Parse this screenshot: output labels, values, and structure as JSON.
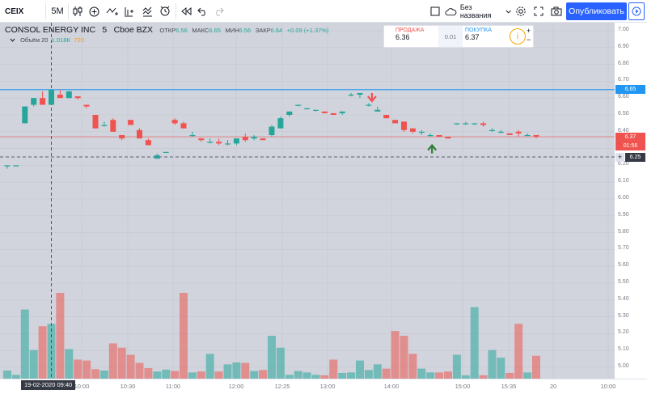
{
  "toolbar": {
    "symbol": "CEIX",
    "interval": "5M",
    "layout_name": "Без названия",
    "publish_label": "Опубликовать"
  },
  "legend": {
    "title": "CONSOL ENERGY INC",
    "interval": "5",
    "exchange": "Cboe BZX",
    "open_label": "ОТКР",
    "open": "6.56",
    "high_label": "МАКС",
    "high": "6.65",
    "low_label": "МИН",
    "low": "6.56",
    "close_label": "ЗАКР",
    "close": "6.64",
    "change": "+0.09 (+1.37%)",
    "volume_label": "Объём 20",
    "volume_value": "1.018K",
    "volume_value2": "720"
  },
  "trade": {
    "sell_label": "ПРОДАЖА",
    "sell_price": "6.36",
    "spread": "0.01",
    "buy_label": "ПОКУПКА",
    "buy_price": "6.37",
    "qty_icon": "i",
    "plus": "+",
    "minus": "−"
  },
  "price_axis": {
    "ticks": [
      "7.00",
      "6.90",
      "6.80",
      "6.70",
      "6.60",
      "6.50",
      "6.40",
      "6.30",
      "6.20",
      "6.10",
      "6.00",
      "5.90",
      "5.80",
      "5.70",
      "5.60",
      "5.50",
      "5.40",
      "5.30",
      "5.20",
      "5.10",
      "5.00"
    ],
    "badge_level": "6.65",
    "badge_last": "6.37",
    "badge_countdown": "01:56",
    "badge_cross": "6.25"
  },
  "time_axis": {
    "labels": [
      "10:00",
      "10:30",
      "11:00",
      "12:00",
      "12:25",
      "13:00",
      "14:00",
      "15:00",
      "15:35",
      "20",
      "10:00"
    ],
    "crosshair_label": "19-02-2020  09:40"
  },
  "colors": {
    "up": "#26a69a",
    "down": "#ef5350",
    "level_line": "#2196f3",
    "last_price_line": "#ef5350",
    "brand": "#2962ff"
  },
  "chart_data": {
    "type": "candlestick",
    "ylim": [
      4.95,
      7.02
    ],
    "level_line": 6.65,
    "last_price": 6.37,
    "crosshair_price": 6.25,
    "candles": [
      {
        "o": 6.2,
        "h": 6.2,
        "l": 6.18,
        "c": 6.2,
        "v": 170
      },
      {
        "o": 6.2,
        "h": 6.2,
        "l": 6.2,
        "c": 6.2,
        "v": 80
      },
      {
        "o": 6.45,
        "h": 6.55,
        "l": 6.45,
        "c": 6.55,
        "v": 1450
      },
      {
        "o": 6.56,
        "h": 6.6,
        "l": 6.55,
        "c": 6.6,
        "v": 600
      },
      {
        "o": 6.6,
        "h": 6.64,
        "l": 6.56,
        "c": 6.56,
        "v": 1100
      },
      {
        "o": 6.56,
        "h": 6.65,
        "l": 6.56,
        "c": 6.65,
        "v": 1150
      },
      {
        "o": 6.62,
        "h": 6.65,
        "l": 6.6,
        "c": 6.6,
        "v": 1800
      },
      {
        "o": 6.6,
        "h": 6.64,
        "l": 6.6,
        "c": 6.64,
        "v": 620
      },
      {
        "o": 6.61,
        "h": 6.61,
        "l": 6.59,
        "c": 6.6,
        "v": 400
      },
      {
        "o": 6.56,
        "h": 6.56,
        "l": 6.54,
        "c": 6.55,
        "v": 380
      },
      {
        "o": 6.5,
        "h": 6.5,
        "l": 6.42,
        "c": 6.42,
        "v": 200
      },
      {
        "o": 6.44,
        "h": 6.46,
        "l": 6.43,
        "c": 6.44,
        "v": 170
      },
      {
        "o": 6.47,
        "h": 6.48,
        "l": 6.4,
        "c": 6.4,
        "v": 740
      },
      {
        "o": 6.38,
        "h": 6.38,
        "l": 6.35,
        "c": 6.36,
        "v": 650
      },
      {
        "o": 6.47,
        "h": 6.47,
        "l": 6.44,
        "c": 6.44,
        "v": 500
      },
      {
        "o": 6.41,
        "h": 6.42,
        "l": 6.36,
        "c": 6.36,
        "v": 330
      },
      {
        "o": 6.35,
        "h": 6.36,
        "l": 6.32,
        "c": 6.32,
        "v": 220
      },
      {
        "o": 6.24,
        "h": 6.27,
        "l": 6.24,
        "c": 6.26,
        "v": 150
      },
      {
        "o": 6.28,
        "h": 6.28,
        "l": 6.28,
        "c": 6.28,
        "v": 190
      },
      {
        "o": 6.47,
        "h": 6.48,
        "l": 6.44,
        "c": 6.45,
        "v": 160
      },
      {
        "o": 6.45,
        "h": 6.46,
        "l": 6.42,
        "c": 6.42,
        "v": 1800
      },
      {
        "o": 6.38,
        "h": 6.4,
        "l": 6.37,
        "c": 6.38,
        "v": 130
      },
      {
        "o": 6.36,
        "h": 6.36,
        "l": 6.34,
        "c": 6.35,
        "v": 150
      },
      {
        "o": 6.34,
        "h": 6.36,
        "l": 6.33,
        "c": 6.34,
        "v": 520
      },
      {
        "o": 6.34,
        "h": 6.36,
        "l": 6.32,
        "c": 6.33,
        "v": 150
      },
      {
        "o": 6.33,
        "h": 6.35,
        "l": 6.32,
        "c": 6.33,
        "v": 300
      },
      {
        "o": 6.33,
        "h": 6.36,
        "l": 6.32,
        "c": 6.36,
        "v": 340
      },
      {
        "o": 6.37,
        "h": 6.39,
        "l": 6.34,
        "c": 6.35,
        "v": 330
      },
      {
        "o": 6.36,
        "h": 6.38,
        "l": 6.35,
        "c": 6.37,
        "v": 160
      },
      {
        "o": 6.36,
        "h": 6.36,
        "l": 6.35,
        "c": 6.35,
        "v": 180
      },
      {
        "o": 6.38,
        "h": 6.44,
        "l": 6.37,
        "c": 6.43,
        "v": 900
      },
      {
        "o": 6.42,
        "h": 6.49,
        "l": 6.42,
        "c": 6.48,
        "v": 650
      },
      {
        "o": 6.5,
        "h": 6.52,
        "l": 6.49,
        "c": 6.52,
        "v": 80
      },
      {
        "o": 6.56,
        "h": 6.56,
        "l": 6.55,
        "c": 6.56,
        "v": 160
      },
      {
        "o": 6.54,
        "h": 6.54,
        "l": 6.53,
        "c": 6.54,
        "v": 130
      },
      {
        "o": 6.53,
        "h": 6.53,
        "l": 6.52,
        "c": 6.53,
        "v": 80
      },
      {
        "o": 6.52,
        "h": 6.52,
        "l": 6.51,
        "c": 6.51,
        "v": 70
      },
      {
        "o": 6.51,
        "h": 6.51,
        "l": 6.5,
        "c": 6.5,
        "v": 400
      },
      {
        "o": 6.51,
        "h": 6.52,
        "l": 6.5,
        "c": 6.52,
        "v": 120
      },
      {
        "o": 6.62,
        "h": 6.63,
        "l": 6.61,
        "c": 6.62,
        "v": 130
      },
      {
        "o": 6.62,
        "h": 6.63,
        "l": 6.6,
        "c": 6.63,
        "v": 380
      },
      {
        "o": 6.56,
        "h": 6.57,
        "l": 6.55,
        "c": 6.56,
        "v": 180
      },
      {
        "o": 6.52,
        "h": 6.55,
        "l": 6.52,
        "c": 6.53,
        "v": 300
      },
      {
        "o": 6.5,
        "h": 6.5,
        "l": 6.48,
        "c": 6.48,
        "v": 210
      },
      {
        "o": 6.47,
        "h": 6.47,
        "l": 6.45,
        "c": 6.45,
        "v": 1000
      },
      {
        "o": 6.46,
        "h": 6.46,
        "l": 6.4,
        "c": 6.41,
        "v": 900
      },
      {
        "o": 6.42,
        "h": 6.42,
        "l": 6.39,
        "c": 6.4,
        "v": 520
      },
      {
        "o": 6.4,
        "h": 6.41,
        "l": 6.38,
        "c": 6.4,
        "v": 210
      },
      {
        "o": 6.38,
        "h": 6.39,
        "l": 6.37,
        "c": 6.38,
        "v": 130
      },
      {
        "o": 6.38,
        "h": 6.38,
        "l": 6.37,
        "c": 6.37,
        "v": 130
      },
      {
        "o": 6.37,
        "h": 6.37,
        "l": 6.36,
        "c": 6.36,
        "v": 150
      },
      {
        "o": 6.45,
        "h": 6.45,
        "l": 6.44,
        "c": 6.45,
        "v": 500
      },
      {
        "o": 6.45,
        "h": 6.46,
        "l": 6.44,
        "c": 6.45,
        "v": 70
      },
      {
        "o": 6.45,
        "h": 6.45,
        "l": 6.44,
        "c": 6.45,
        "v": 1500
      },
      {
        "o": 6.45,
        "h": 6.46,
        "l": 6.43,
        "c": 6.44,
        "v": 70
      },
      {
        "o": 6.41,
        "h": 6.42,
        "l": 6.4,
        "c": 6.41,
        "v": 600
      },
      {
        "o": 6.4,
        "h": 6.41,
        "l": 6.39,
        "c": 6.4,
        "v": 440
      },
      {
        "o": 6.39,
        "h": 6.39,
        "l": 6.38,
        "c": 6.38,
        "v": 120
      },
      {
        "o": 6.4,
        "h": 6.41,
        "l": 6.37,
        "c": 6.39,
        "v": 1150
      },
      {
        "o": 6.38,
        "h": 6.39,
        "l": 6.38,
        "c": 6.38,
        "v": 130
      },
      {
        "o": 6.38,
        "h": 6.38,
        "l": 6.36,
        "c": 6.37,
        "v": 480
      }
    ]
  }
}
